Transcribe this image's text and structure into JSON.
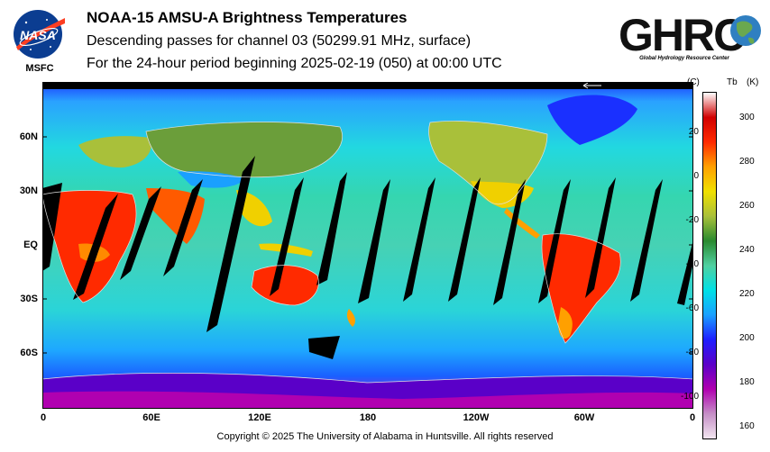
{
  "header": {
    "title": "NOAA-15 AMSU-A Brightness Temperatures",
    "subtitle": "Descending passes for channel 03 (50299.91 MHz, surface)",
    "period": "For the 24-hour period beginning 2025-02-19 (050) at 00:00 UTC"
  },
  "logos": {
    "nasa_text": "NASA",
    "nasa_sub": "MSFC",
    "ghrc_text": "GHRC",
    "ghrc_sub": "Global Hydrology Resource Center"
  },
  "map": {
    "lat_labels": [
      "60N",
      "30N",
      "EQ",
      "30S",
      "60S"
    ],
    "lon_labels": [
      "0",
      "60E",
      "120E",
      "180",
      "120W",
      "60W",
      "0"
    ],
    "no_data_color": "#000000",
    "orbit_direction_icon": "arrow-left-icon"
  },
  "colorbar": {
    "unit_c": "(C)",
    "unit_label": "Tb",
    "unit_k": "(K)",
    "celsius_ticks": [
      "20",
      "0",
      "-20",
      "-40",
      "-60",
      "-80",
      "-100"
    ],
    "kelvin_ticks": [
      "300",
      "280",
      "260",
      "240",
      "220",
      "200",
      "180",
      "160"
    ],
    "colors": [
      "#f2e6f0",
      "#c58fc6",
      "#b000b0",
      "#5a00c8",
      "#1e1eff",
      "#1aa0ff",
      "#00e0e6",
      "#50d0a0",
      "#2a8a30",
      "#a9c03a",
      "#f0e000",
      "#ffa000",
      "#ff2a00",
      "#d00000",
      "#ffffff"
    ]
  },
  "footer": {
    "copyright": "Copyright © 2025 The University of Alabama in Huntsville.  All rights reserved"
  }
}
